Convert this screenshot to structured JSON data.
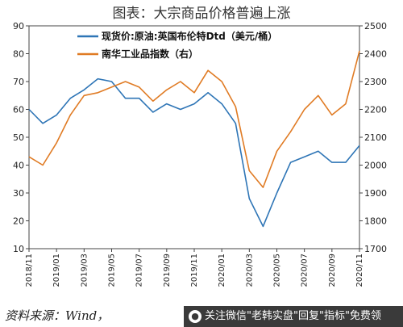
{
  "title": "图表：大宗商品价格普遍上涨",
  "source": "资料来源：Wind，",
  "watermark": {
    "icon": "wechat-icon",
    "text": "关注微信\"老韩实盘\"回复\"指标\"免费领"
  },
  "chart_data": {
    "type": "line",
    "dual_axis": true,
    "x": [
      "2018/11",
      "2018/12",
      "2019/01",
      "2019/02",
      "2019/03",
      "2019/04",
      "2019/05",
      "2019/06",
      "2019/07",
      "2019/08",
      "2019/09",
      "2019/10",
      "2019/11",
      "2019/12",
      "2020/01",
      "2020/02",
      "2020/03",
      "2020/04",
      "2020/05",
      "2020/06",
      "2020/07",
      "2020/08",
      "2020/09",
      "2020/10",
      "2020/11"
    ],
    "x_tick_labels": [
      "2018/11",
      "2019/01",
      "2019/03",
      "2019/05",
      "2019/07",
      "2019/09",
      "2019/11",
      "2020/01",
      "2020/03",
      "2020/05",
      "2020/07",
      "2020/09",
      "2020/11"
    ],
    "left_axis": {
      "ylim": [
        10,
        90
      ],
      "ticks": [
        10,
        20,
        30,
        40,
        50,
        60,
        70,
        80,
        90
      ]
    },
    "right_axis": {
      "ylim": [
        1700,
        2500
      ],
      "ticks": [
        1700,
        1800,
        1900,
        2000,
        2100,
        2200,
        2300,
        2400,
        2500
      ]
    },
    "legend_position": "top",
    "series": [
      {
        "name": "现货价:原油:英国布伦特Dtd（美元/桶）",
        "axis": "left",
        "color": "#2e75b6",
        "values": [
          60,
          55,
          58,
          64,
          67,
          71,
          70,
          64,
          64,
          59,
          62,
          60,
          62,
          66,
          62,
          55,
          28,
          18,
          30,
          41,
          43,
          45,
          41,
          41,
          47
        ]
      },
      {
        "name": "南华工业品指数（右）",
        "axis": "right",
        "color": "#e07b24",
        "values": [
          2030,
          2000,
          2080,
          2180,
          2250,
          2260,
          2280,
          2300,
          2280,
          2230,
          2270,
          2300,
          2260,
          2340,
          2300,
          2210,
          1980,
          1920,
          2050,
          2120,
          2200,
          2250,
          2180,
          2220,
          2410
        ]
      }
    ]
  }
}
